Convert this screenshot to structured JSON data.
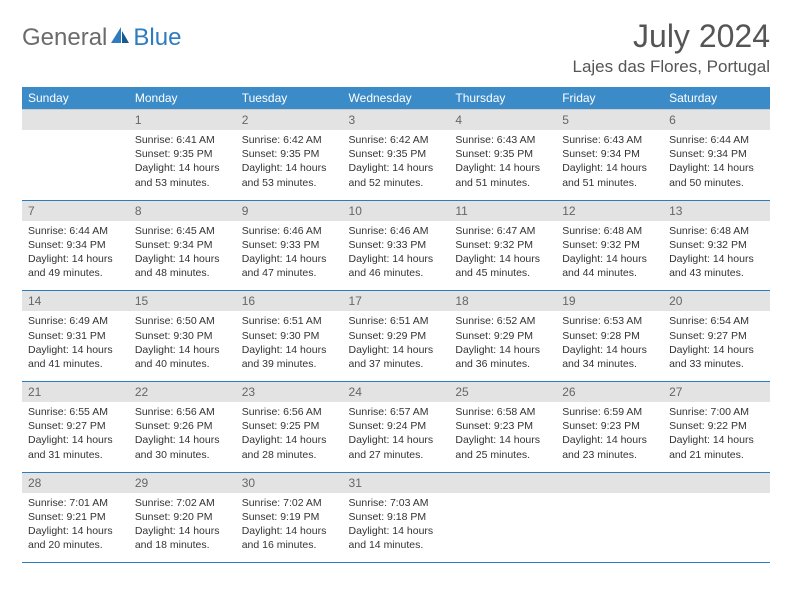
{
  "brand": {
    "part1": "General",
    "part2": "Blue"
  },
  "title": "July 2024",
  "location": "Lajes das Flores, Portugal",
  "colors": {
    "header_blue": "#3b8bc8",
    "divider_blue": "#2e7cc0",
    "daynum_bg": "#e3e3e3",
    "text_gray": "#555"
  },
  "day_names": [
    "Sunday",
    "Monday",
    "Tuesday",
    "Wednesday",
    "Thursday",
    "Friday",
    "Saturday"
  ],
  "first_weekday": 1,
  "days": [
    {
      "n": 1,
      "sr": "6:41 AM",
      "ss": "9:35 PM",
      "dl": "14 hours and 53 minutes."
    },
    {
      "n": 2,
      "sr": "6:42 AM",
      "ss": "9:35 PM",
      "dl": "14 hours and 53 minutes."
    },
    {
      "n": 3,
      "sr": "6:42 AM",
      "ss": "9:35 PM",
      "dl": "14 hours and 52 minutes."
    },
    {
      "n": 4,
      "sr": "6:43 AM",
      "ss": "9:35 PM",
      "dl": "14 hours and 51 minutes."
    },
    {
      "n": 5,
      "sr": "6:43 AM",
      "ss": "9:34 PM",
      "dl": "14 hours and 51 minutes."
    },
    {
      "n": 6,
      "sr": "6:44 AM",
      "ss": "9:34 PM",
      "dl": "14 hours and 50 minutes."
    },
    {
      "n": 7,
      "sr": "6:44 AM",
      "ss": "9:34 PM",
      "dl": "14 hours and 49 minutes."
    },
    {
      "n": 8,
      "sr": "6:45 AM",
      "ss": "9:34 PM",
      "dl": "14 hours and 48 minutes."
    },
    {
      "n": 9,
      "sr": "6:46 AM",
      "ss": "9:33 PM",
      "dl": "14 hours and 47 minutes."
    },
    {
      "n": 10,
      "sr": "6:46 AM",
      "ss": "9:33 PM",
      "dl": "14 hours and 46 minutes."
    },
    {
      "n": 11,
      "sr": "6:47 AM",
      "ss": "9:32 PM",
      "dl": "14 hours and 45 minutes."
    },
    {
      "n": 12,
      "sr": "6:48 AM",
      "ss": "9:32 PM",
      "dl": "14 hours and 44 minutes."
    },
    {
      "n": 13,
      "sr": "6:48 AM",
      "ss": "9:32 PM",
      "dl": "14 hours and 43 minutes."
    },
    {
      "n": 14,
      "sr": "6:49 AM",
      "ss": "9:31 PM",
      "dl": "14 hours and 41 minutes."
    },
    {
      "n": 15,
      "sr": "6:50 AM",
      "ss": "9:30 PM",
      "dl": "14 hours and 40 minutes."
    },
    {
      "n": 16,
      "sr": "6:51 AM",
      "ss": "9:30 PM",
      "dl": "14 hours and 39 minutes."
    },
    {
      "n": 17,
      "sr": "6:51 AM",
      "ss": "9:29 PM",
      "dl": "14 hours and 37 minutes."
    },
    {
      "n": 18,
      "sr": "6:52 AM",
      "ss": "9:29 PM",
      "dl": "14 hours and 36 minutes."
    },
    {
      "n": 19,
      "sr": "6:53 AM",
      "ss": "9:28 PM",
      "dl": "14 hours and 34 minutes."
    },
    {
      "n": 20,
      "sr": "6:54 AM",
      "ss": "9:27 PM",
      "dl": "14 hours and 33 minutes."
    },
    {
      "n": 21,
      "sr": "6:55 AM",
      "ss": "9:27 PM",
      "dl": "14 hours and 31 minutes."
    },
    {
      "n": 22,
      "sr": "6:56 AM",
      "ss": "9:26 PM",
      "dl": "14 hours and 30 minutes."
    },
    {
      "n": 23,
      "sr": "6:56 AM",
      "ss": "9:25 PM",
      "dl": "14 hours and 28 minutes."
    },
    {
      "n": 24,
      "sr": "6:57 AM",
      "ss": "9:24 PM",
      "dl": "14 hours and 27 minutes."
    },
    {
      "n": 25,
      "sr": "6:58 AM",
      "ss": "9:23 PM",
      "dl": "14 hours and 25 minutes."
    },
    {
      "n": 26,
      "sr": "6:59 AM",
      "ss": "9:23 PM",
      "dl": "14 hours and 23 minutes."
    },
    {
      "n": 27,
      "sr": "7:00 AM",
      "ss": "9:22 PM",
      "dl": "14 hours and 21 minutes."
    },
    {
      "n": 28,
      "sr": "7:01 AM",
      "ss": "9:21 PM",
      "dl": "14 hours and 20 minutes."
    },
    {
      "n": 29,
      "sr": "7:02 AM",
      "ss": "9:20 PM",
      "dl": "14 hours and 18 minutes."
    },
    {
      "n": 30,
      "sr": "7:02 AM",
      "ss": "9:19 PM",
      "dl": "14 hours and 16 minutes."
    },
    {
      "n": 31,
      "sr": "7:03 AM",
      "ss": "9:18 PM",
      "dl": "14 hours and 14 minutes."
    }
  ]
}
